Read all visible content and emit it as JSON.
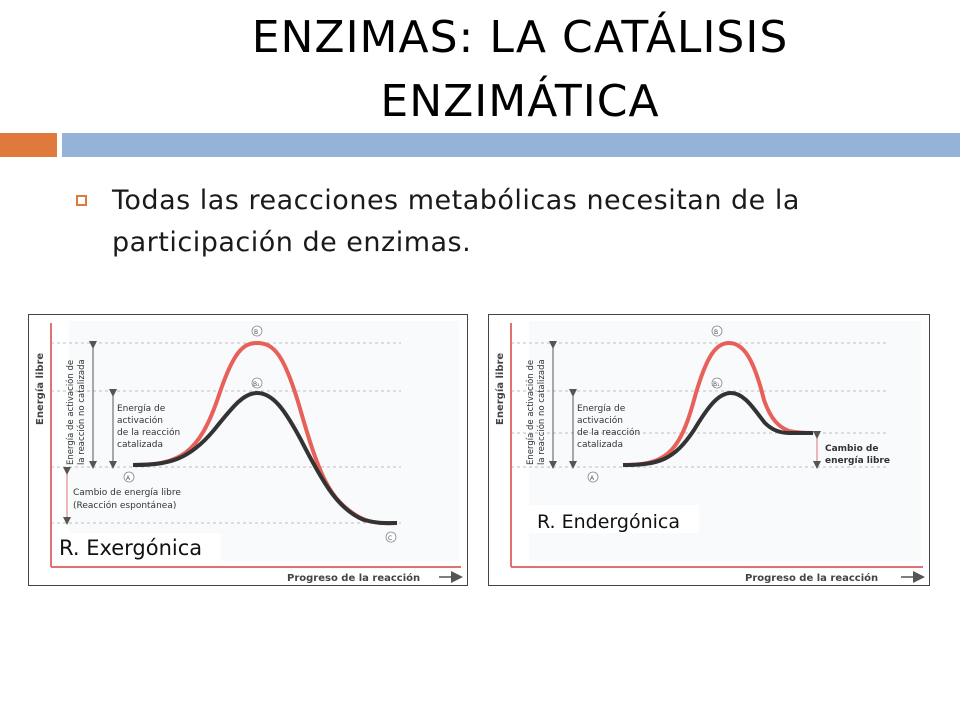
{
  "slide": {
    "title_line1": "ENZIMAS: LA CATÁLISIS",
    "title_line2": "ENZIMÁTICA",
    "bullet_line1": "Todas las reacciones metabólicas necesitan de la",
    "bullet_line2": "participación de enzimas.",
    "accent_color": "#e07a3c",
    "bar_color": "#95b3d7"
  },
  "diagrams": {
    "left": {
      "y_axis": "Energía libre",
      "x_axis": "Progreso de la reacción",
      "uncatalyzed_label_1": "Energía de activación de",
      "uncatalyzed_label_2": "la reacción no catalizada",
      "catalyzed_label_1": "Energía de",
      "catalyzed_label_2": "activación",
      "catalyzed_label_3": "de la reacción",
      "catalyzed_label_4": "catalizada",
      "delta_label_1": "Cambio de energía libre",
      "delta_label_2": "(Reacción espontánea)",
      "point_a": "A",
      "point_b": "B",
      "point_b1": "B₁",
      "point_c": "C",
      "caption": "R. Exergónica"
    },
    "right": {
      "y_axis": "Energía libre",
      "x_axis": "Progreso de la reacción",
      "uncatalyzed_label_1": "Energía de activación de",
      "uncatalyzed_label_2": "la reacción no catalizada",
      "catalyzed_label_1": "Energía de",
      "catalyzed_label_2": "activación",
      "catalyzed_label_3": "de la reacción",
      "catalyzed_label_4": "catalizada",
      "delta_label_1": "Cambio de",
      "delta_label_2": "energía libre",
      "point_a": "A",
      "point_b": "B",
      "point_b1": "B₁",
      "caption": "R. Endergónica"
    }
  }
}
